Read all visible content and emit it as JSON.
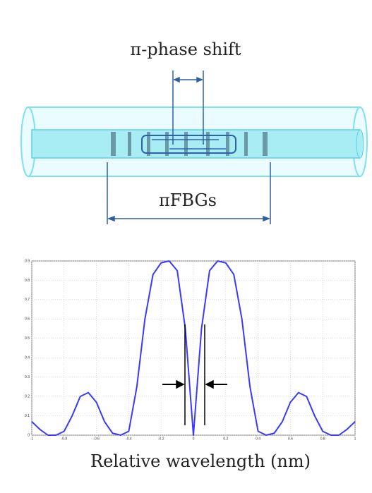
{
  "diagram": {
    "phase_label": "π-phase shift",
    "grating_label": "πFBGs"
  },
  "chart_data": {
    "type": "line",
    "xlabel": "Relative wavelength (nm)",
    "x": [
      -1,
      -0.95,
      -0.9,
      -0.85,
      -0.8,
      -0.75,
      -0.7,
      -0.65,
      -0.6,
      -0.55,
      -0.5,
      -0.45,
      -0.4,
      -0.35,
      -0.3,
      -0.25,
      -0.2,
      -0.15,
      -0.1,
      -0.05,
      0,
      0.05,
      0.1,
      0.15,
      0.2,
      0.25,
      0.3,
      0.35,
      0.4,
      0.45,
      0.5,
      0.55,
      0.6,
      0.65,
      0.7,
      0.75,
      0.8,
      0.85,
      0.9,
      0.95,
      1
    ],
    "series": [
      {
        "color": "#3a3aff",
        "values": [
          0.07,
          0.03,
          0,
          0,
          0.02,
          0.1,
          0.2,
          0.22,
          0.17,
          0.07,
          0.01,
          0,
          0.02,
          0.25,
          0.6,
          0.83,
          0.89,
          0.9,
          0.85,
          0.55,
          0,
          0.55,
          0.85,
          0.9,
          0.89,
          0.83,
          0.6,
          0.25,
          0.02,
          0,
          0.01,
          0.07,
          0.17,
          0.22,
          0.2,
          0.1,
          0.02,
          0,
          0,
          0.03,
          0.07
        ]
      }
    ],
    "xlim": [
      -1,
      1
    ],
    "ylim": [
      0,
      0.9
    ],
    "xticks": [
      -1,
      -0.8,
      -0.6,
      -0.4,
      -0.2,
      0,
      0.2,
      0.4,
      0.6,
      0.8,
      1
    ],
    "yticks": [
      0,
      0.1,
      0.2,
      0.3,
      0.4,
      0.5,
      0.6,
      0.7,
      0.8,
      0.9
    ],
    "grid": true
  }
}
